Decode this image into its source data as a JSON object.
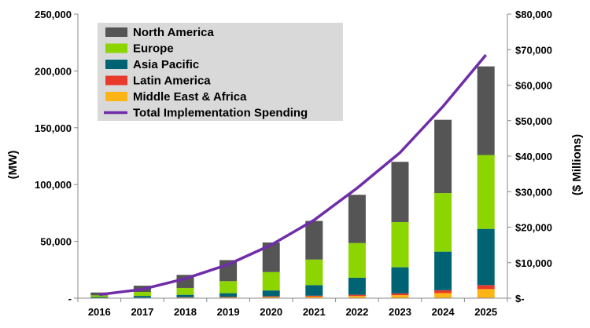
{
  "chart_data": {
    "type": "bar",
    "stacked": true,
    "categories": [
      "2016",
      "2017",
      "2018",
      "2019",
      "2020",
      "2021",
      "2022",
      "2023",
      "2024",
      "2025"
    ],
    "series": [
      {
        "name": "Middle East & Africa",
        "color": "#FDB515",
        "values": [
          150,
          300,
          500,
          700,
          1000,
          1400,
          1900,
          2700,
          4500,
          8000
        ]
      },
      {
        "name": "Latin America",
        "color": "#E8392B",
        "values": [
          100,
          150,
          300,
          400,
          600,
          800,
          1100,
          1500,
          2500,
          3500
        ]
      },
      {
        "name": "Asia Pacific",
        "color": "#006374",
        "values": [
          750,
          1550,
          2200,
          3300,
          5200,
          9300,
          15000,
          23000,
          34000,
          49500
        ]
      },
      {
        "name": "Europe",
        "color": "#8CD500",
        "values": [
          1500,
          3500,
          6000,
          10600,
          16200,
          22500,
          30500,
          39800,
          51500,
          65000
        ]
      },
      {
        "name": "North America",
        "color": "#555555",
        "values": [
          2500,
          5500,
          11500,
          18500,
          26000,
          34000,
          42500,
          53000,
          64500,
          78000
        ]
      }
    ],
    "line_series": {
      "name": "Total Implementation Spending",
      "color": "#6F2DA8",
      "axis": "right",
      "values": [
        1000,
        2500,
        5500,
        9500,
        15000,
        22000,
        31000,
        41000,
        54000,
        68500
      ]
    },
    "y_left": {
      "label": "(MW)",
      "min": 0,
      "max": 250000,
      "ticks": [
        "-",
        "50,000",
        "100,000",
        "150,000",
        "200,000",
        "250,000"
      ]
    },
    "y_right": {
      "label": "($ Millions)",
      "min": 0,
      "max": 80000,
      "ticks": [
        "$-",
        "$10,000",
        "$20,000",
        "$30,000",
        "$40,000",
        "$50,000",
        "$60,000",
        "$70,000",
        "$80,000"
      ]
    },
    "legend": {
      "position": "top-left",
      "items": [
        {
          "name": "North America",
          "color": "#555555",
          "kind": "box"
        },
        {
          "name": "Europe",
          "color": "#8CD500",
          "kind": "box"
        },
        {
          "name": "Asia Pacific",
          "color": "#006374",
          "kind": "box"
        },
        {
          "name": "Latin America",
          "color": "#E8392B",
          "kind": "box"
        },
        {
          "name": "Middle East & Africa",
          "color": "#FDB515",
          "kind": "box"
        },
        {
          "name": "Total Implementation Spending",
          "color": "#6F2DA8",
          "kind": "line"
        }
      ]
    },
    "grid": false
  }
}
